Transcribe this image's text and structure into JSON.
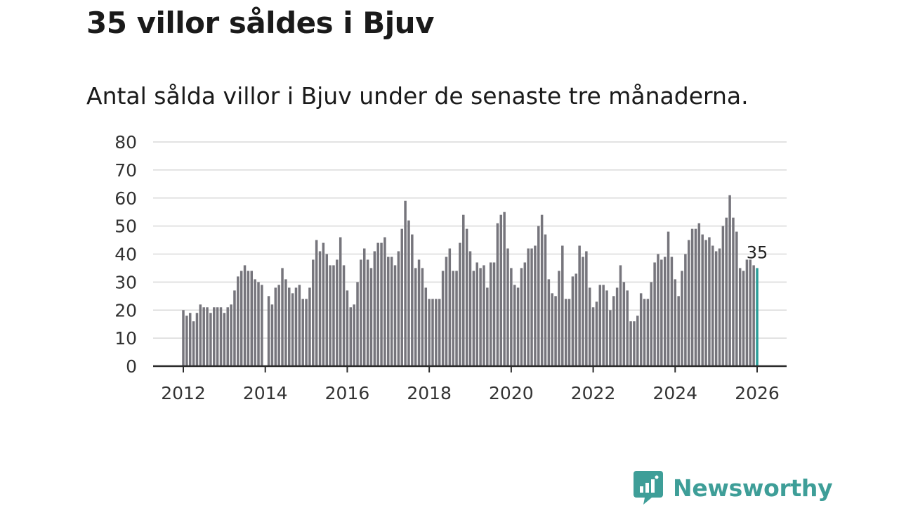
{
  "header": {
    "title": "35 villor såldes i Bjuv",
    "subtitle": "Antal sålda villor i Bjuv under de senaste tre månaderna."
  },
  "brand": {
    "name": "Newsworthy",
    "icon": "newsworthy-logo-icon"
  },
  "colors": {
    "bar": "#76757c",
    "highlight": "#2a9d98",
    "grid": "#d9d9d9",
    "axis": "#2b2b2b",
    "text": "#333333"
  },
  "chart_data": {
    "type": "bar",
    "title": "35 villor såldes i Bjuv",
    "subtitle": "Antal sålda villor i Bjuv under de senaste tre månaderna.",
    "xlabel": "",
    "ylabel": "",
    "ylim": [
      0,
      80
    ],
    "yticks": [
      0,
      10,
      20,
      30,
      40,
      50,
      60,
      70,
      80
    ],
    "xticks": [
      "2012",
      "2014",
      "2016",
      "2018",
      "2020",
      "2022",
      "2024",
      "2026"
    ],
    "start": "2012-01",
    "frequency": "monthly",
    "grid": true,
    "highlight_last": true,
    "last_label": "35",
    "values": [
      20,
      18,
      19,
      16,
      19,
      22,
      21,
      21,
      19,
      21,
      21,
      21,
      19,
      21,
      22,
      27,
      32,
      34,
      36,
      34,
      34,
      31,
      30,
      29,
      null,
      25,
      22,
      28,
      29,
      35,
      31,
      28,
      26,
      28,
      29,
      24,
      24,
      28,
      38,
      45,
      41,
      44,
      40,
      36,
      36,
      38,
      46,
      36,
      27,
      21,
      22,
      30,
      38,
      42,
      38,
      35,
      41,
      44,
      44,
      46,
      39,
      39,
      36,
      41,
      49,
      59,
      52,
      47,
      35,
      38,
      35,
      28,
      24,
      24,
      24,
      24,
      34,
      39,
      42,
      34,
      34,
      44,
      54,
      49,
      41,
      34,
      37,
      35,
      36,
      28,
      37,
      37,
      51,
      54,
      55,
      42,
      35,
      29,
      28,
      35,
      37,
      42,
      42,
      43,
      50,
      54,
      47,
      31,
      26,
      25,
      34,
      43,
      24,
      24,
      32,
      33,
      43,
      39,
      41,
      28,
      21,
      23,
      29,
      29,
      27,
      20,
      25,
      28,
      36,
      30,
      27,
      16,
      16,
      18,
      26,
      24,
      24,
      30,
      37,
      40,
      38,
      39,
      48,
      39,
      31,
      25,
      34,
      40,
      45,
      49,
      49,
      51,
      47,
      45,
      46,
      43,
      41,
      42,
      50,
      53,
      61,
      53,
      48,
      35,
      34,
      38,
      38,
      36,
      35
    ]
  }
}
